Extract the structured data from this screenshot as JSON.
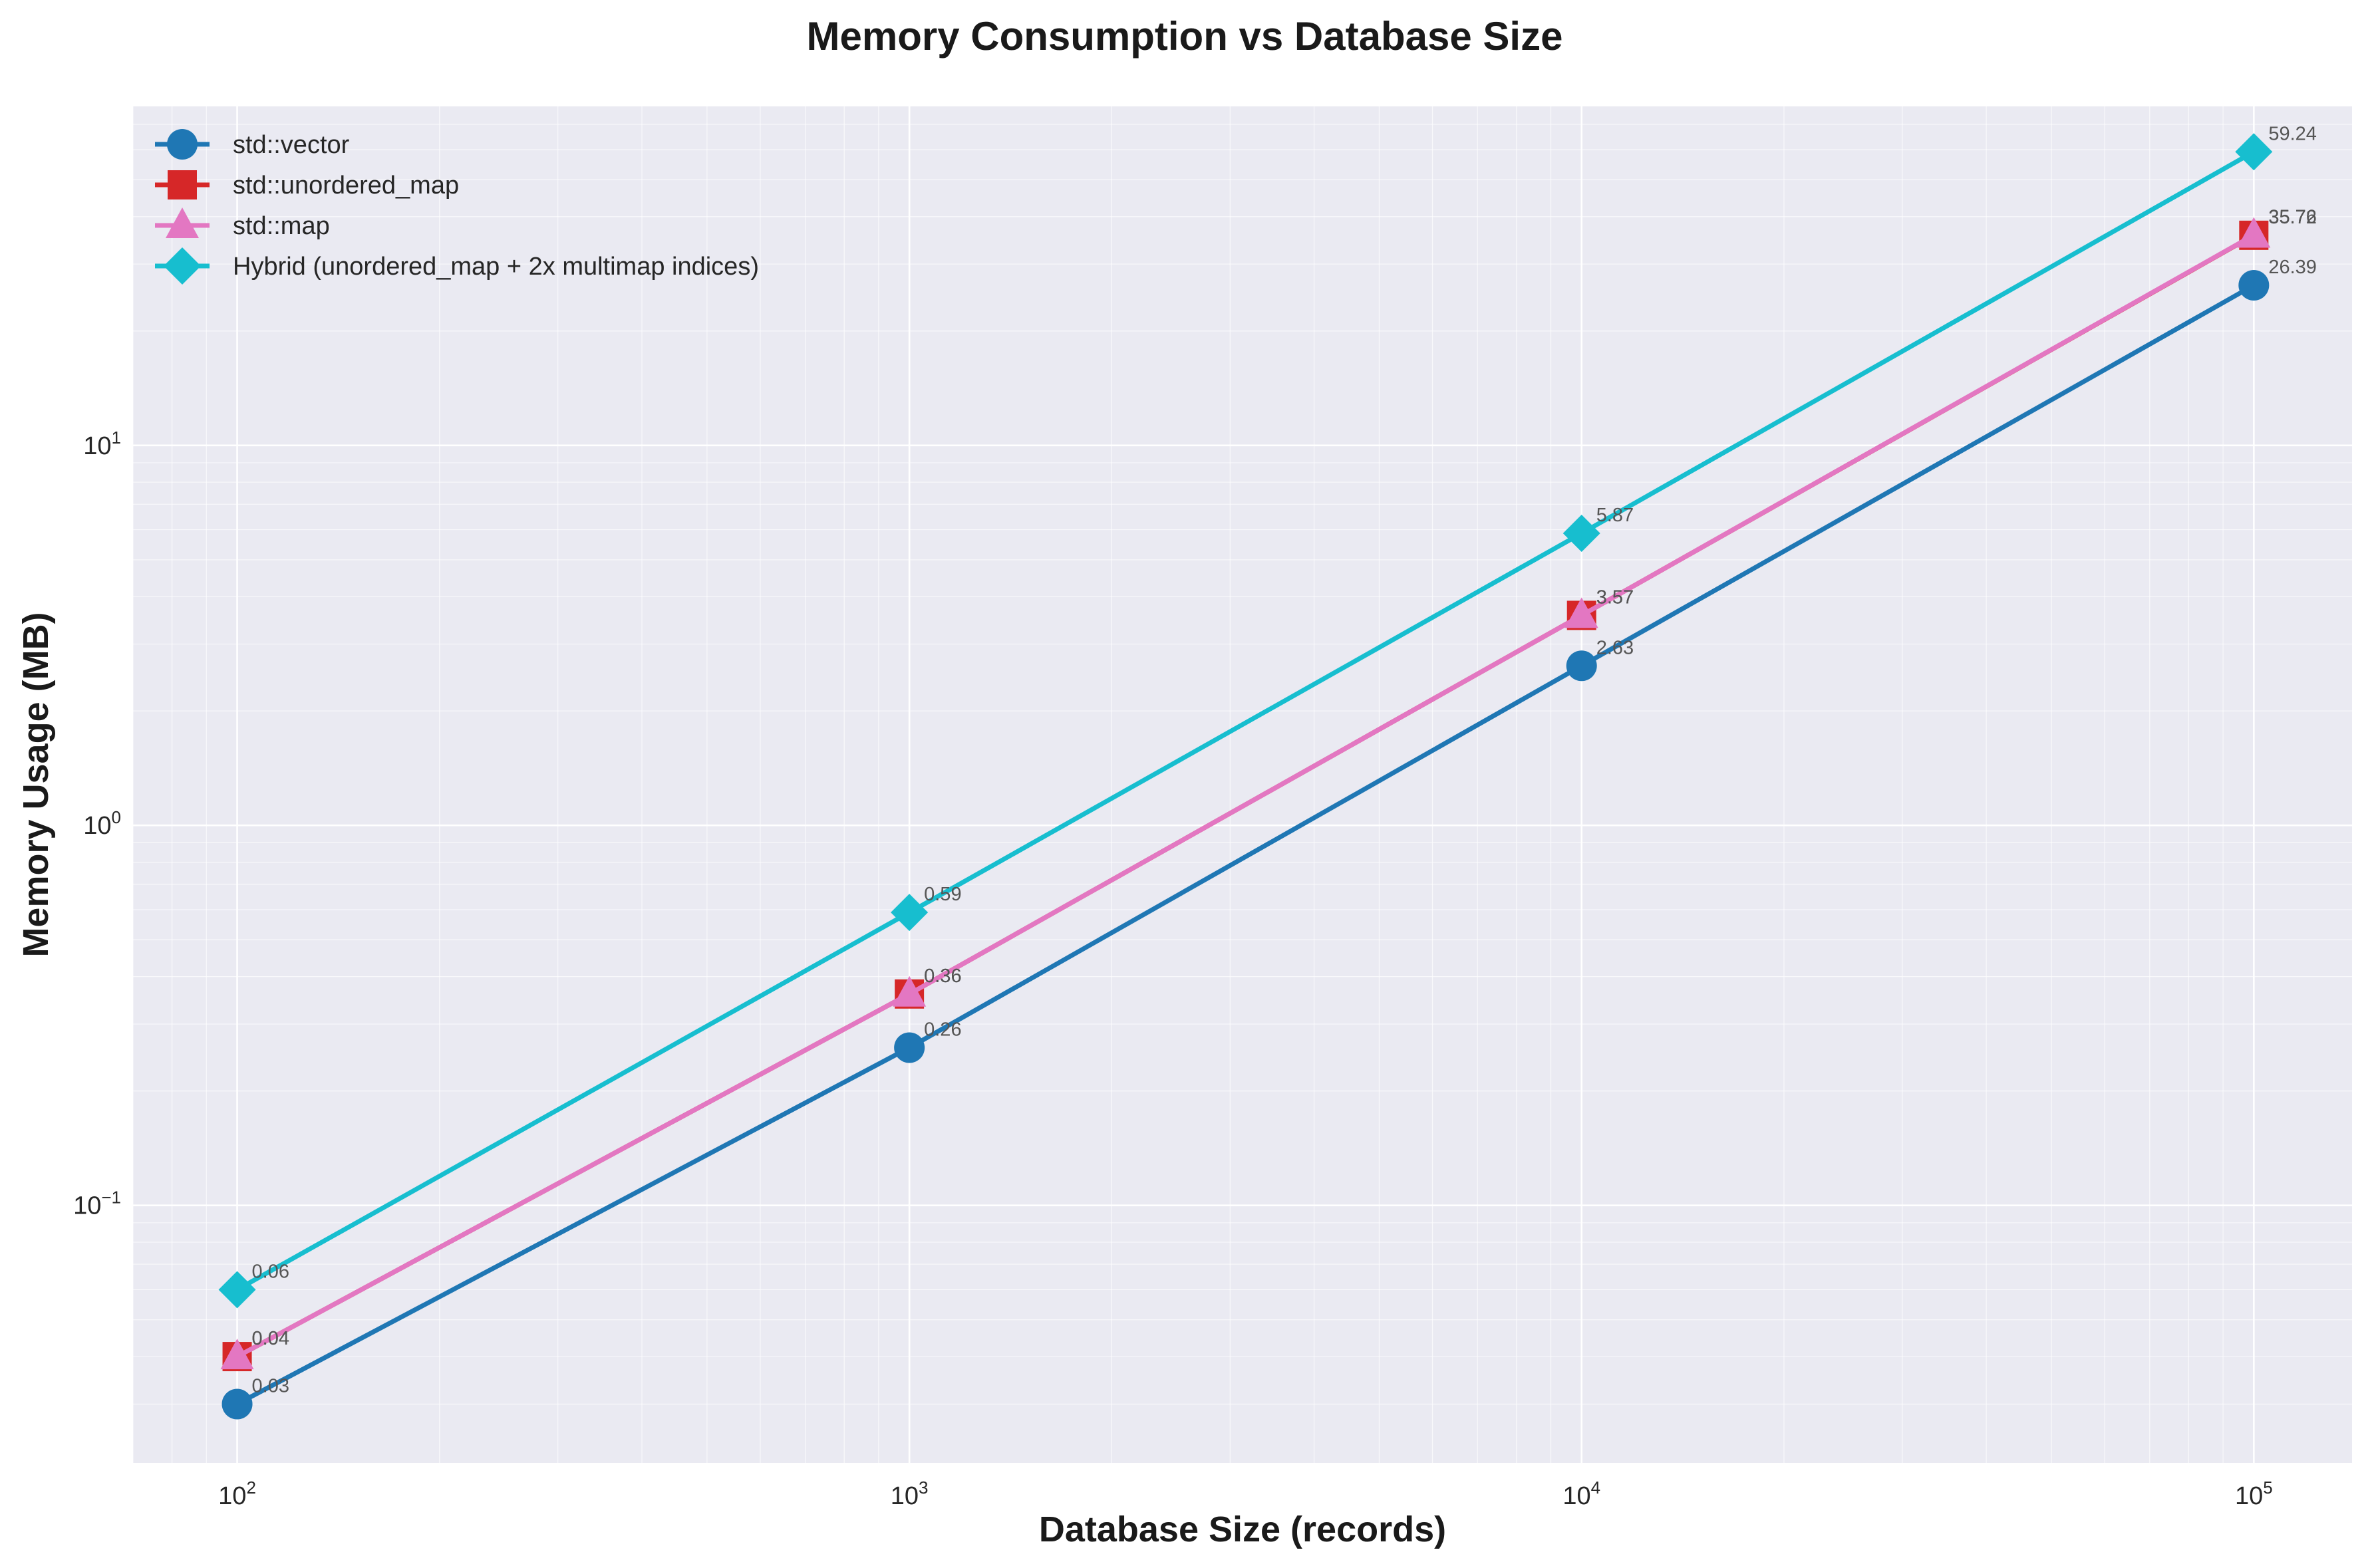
{
  "chart_data": {
    "type": "line",
    "title": "Memory Consumption vs Database Size",
    "xlabel": "Database Size (records)",
    "ylabel": "Memory Usage (MB)",
    "xscale": "log",
    "yscale": "log",
    "xlim": [
      70,
      140000
    ],
    "ylim": [
      0.021,
      78
    ],
    "x_ticks": [
      {
        "value": 100,
        "base": "10",
        "exp": "2"
      },
      {
        "value": 1000,
        "base": "10",
        "exp": "3"
      },
      {
        "value": 10000,
        "base": "10",
        "exp": "4"
      },
      {
        "value": 100000,
        "base": "10",
        "exp": "5"
      }
    ],
    "y_ticks": [
      {
        "value": 0.1,
        "base": "10",
        "exp": "−1"
      },
      {
        "value": 1,
        "base": "10",
        "exp": "0"
      },
      {
        "value": 10,
        "base": "10",
        "exp": "1"
      }
    ],
    "grid": true,
    "legend_position": "top-left",
    "x": [
      100,
      1000,
      10000,
      100000
    ],
    "series": [
      {
        "name": "std::vector",
        "color": "#1f77b4",
        "marker": "circle",
        "values": [
          0.03,
          0.26,
          2.63,
          26.39
        ],
        "labels": [
          "0.03",
          "0.26",
          "2.63",
          "26.39"
        ]
      },
      {
        "name": "std::unordered_map",
        "color": "#d62728",
        "marker": "square",
        "values": [
          0.04,
          0.36,
          3.57,
          35.72
        ],
        "labels": [
          "0.04",
          "0.36",
          "3.57",
          "35.72"
        ]
      },
      {
        "name": "std::map",
        "color": "#e377c2",
        "marker": "triangle",
        "values": [
          0.04,
          0.36,
          3.57,
          35.76
        ],
        "labels": [
          "0.04",
          "0.36",
          "3.57",
          "35.76"
        ]
      },
      {
        "name": "Hybrid (unordered_map + 2x multimap indices)",
        "color": "#17becf",
        "marker": "diamond",
        "values": [
          0.06,
          0.59,
          5.87,
          59.24
        ],
        "labels": [
          "0.06",
          "0.59",
          "5.87",
          "59.24"
        ]
      }
    ]
  }
}
